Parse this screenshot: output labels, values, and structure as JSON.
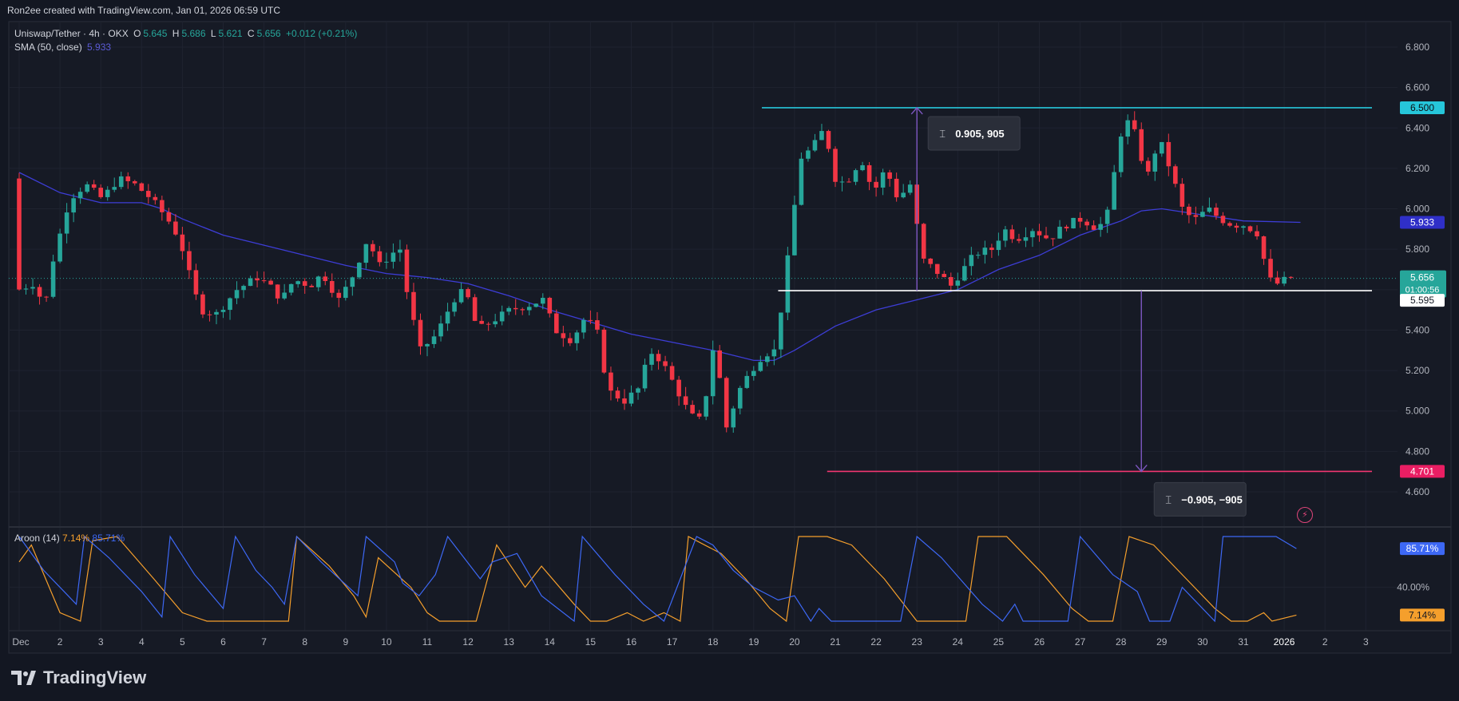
{
  "header": {
    "text": "Ron2ee created with TradingView.com, Jan 01, 2026 06:59 UTC"
  },
  "legend": {
    "symbol": "Uniswap/Tether · 4h · OKX",
    "o_label": "O",
    "o": "5.645",
    "h_label": "H",
    "h": "5.686",
    "l_label": "L",
    "l": "5.621",
    "c_label": "C",
    "c": "5.656",
    "change": "+0.012 (+0.21%)",
    "sma_label": "SMA (50, close)",
    "sma_value": "5.933"
  },
  "aroon_legend": {
    "label": "Aroon (14)",
    "down": "7.14%",
    "up": "85.71%"
  },
  "footer": {
    "brand": "TradingView"
  },
  "colors": {
    "up": "#26a69a",
    "down": "#f23645",
    "sma": "#3d3dd6",
    "aroon_up": "#3d68f5",
    "aroon_down": "#f59f2c",
    "resistance": "#26c6da",
    "support": "#ffffff",
    "target": "#f23671",
    "measure": "#7e57c2"
  },
  "chart_data": {
    "type": "candlestick",
    "title": "",
    "xlabel": "",
    "ylabel": "",
    "ylim": [
      4.5,
      6.9
    ],
    "y_ticks": [
      4.6,
      4.8,
      5.0,
      5.2,
      5.4,
      5.6,
      5.8,
      6.0,
      6.2,
      6.4,
      6.6,
      6.8
    ],
    "y_tick_labels": [
      "4.600",
      "4.800",
      "5.000",
      "5.200",
      "5.400",
      "5.600",
      "5.800",
      "6.000",
      "6.200",
      "6.400",
      "6.600",
      "6.800"
    ],
    "x_ticks": [
      "Dec",
      "2",
      "3",
      "4",
      "5",
      "6",
      "7",
      "8",
      "9",
      "10",
      "11",
      "12",
      "13",
      "14",
      "15",
      "16",
      "17",
      "18",
      "19",
      "20",
      "21",
      "22",
      "23",
      "24",
      "25",
      "26",
      "27",
      "28",
      "29",
      "30",
      "31",
      "2026",
      "2",
      "3"
    ],
    "price_anchors": [
      [
        1.0,
        6.15
      ],
      [
        1.15,
        5.6
      ],
      [
        1.5,
        5.63
      ],
      [
        1.8,
        5.52
      ],
      [
        2.0,
        5.75
      ],
      [
        2.4,
        6.05
      ],
      [
        2.8,
        6.12
      ],
      [
        3.2,
        6.05
      ],
      [
        3.6,
        6.15
      ],
      [
        4.0,
        6.12
      ],
      [
        4.4,
        6.05
      ],
      [
        4.8,
        5.95
      ],
      [
        5.1,
        5.85
      ],
      [
        5.3,
        5.7
      ],
      [
        5.6,
        5.5
      ],
      [
        6.0,
        5.48
      ],
      [
        6.5,
        5.6
      ],
      [
        7.0,
        5.66
      ],
      [
        7.3,
        5.62
      ],
      [
        7.6,
        5.55
      ],
      [
        7.9,
        5.65
      ],
      [
        8.3,
        5.62
      ],
      [
        8.6,
        5.68
      ],
      [
        9.0,
        5.55
      ],
      [
        9.3,
        5.65
      ],
      [
        9.7,
        5.85
      ],
      [
        10.0,
        5.72
      ],
      [
        10.3,
        5.78
      ],
      [
        10.5,
        5.8
      ],
      [
        10.7,
        5.55
      ],
      [
        11.0,
        5.3
      ],
      [
        11.4,
        5.38
      ],
      [
        11.8,
        5.55
      ],
      [
        12.1,
        5.6
      ],
      [
        12.4,
        5.4
      ],
      [
        12.8,
        5.45
      ],
      [
        13.2,
        5.5
      ],
      [
        13.6,
        5.52
      ],
      [
        14.0,
        5.55
      ],
      [
        14.3,
        5.4
      ],
      [
        14.7,
        5.35
      ],
      [
        15.0,
        5.45
      ],
      [
        15.3,
        5.42
      ],
      [
        15.6,
        5.1
      ],
      [
        16.0,
        5.05
      ],
      [
        16.4,
        5.12
      ],
      [
        16.6,
        5.3
      ],
      [
        16.9,
        5.25
      ],
      [
        17.3,
        5.1
      ],
      [
        17.6,
        4.98
      ],
      [
        17.9,
        4.95
      ],
      [
        18.2,
        5.35
      ],
      [
        18.5,
        4.92
      ],
      [
        18.8,
        5.1
      ],
      [
        19.1,
        5.2
      ],
      [
        19.4,
        5.28
      ],
      [
        19.7,
        5.3
      ],
      [
        19.9,
        5.6
      ],
      [
        20.1,
        5.9
      ],
      [
        20.3,
        6.25
      ],
      [
        20.6,
        6.3
      ],
      [
        20.9,
        6.4
      ],
      [
        21.2,
        6.12
      ],
      [
        21.5,
        6.15
      ],
      [
        21.8,
        6.25
      ],
      [
        22.1,
        6.08
      ],
      [
        22.4,
        6.2
      ],
      [
        22.7,
        6.05
      ],
      [
        23.0,
        6.12
      ],
      [
        23.3,
        5.75
      ],
      [
        23.6,
        5.7
      ],
      [
        24.0,
        5.62
      ],
      [
        24.3,
        5.7
      ],
      [
        24.6,
        5.78
      ],
      [
        25.0,
        5.8
      ],
      [
        25.3,
        5.9
      ],
      [
        25.6,
        5.85
      ],
      [
        26.0,
        5.9
      ],
      [
        26.4,
        5.85
      ],
      [
        26.8,
        5.92
      ],
      [
        27.2,
        5.95
      ],
      [
        27.6,
        5.9
      ],
      [
        27.9,
        6.0
      ],
      [
        28.1,
        6.35
      ],
      [
        28.4,
        6.45
      ],
      [
        28.6,
        6.3
      ],
      [
        28.8,
        6.15
      ],
      [
        29.1,
        6.35
      ],
      [
        29.4,
        6.18
      ],
      [
        29.7,
        5.98
      ],
      [
        30.0,
        5.95
      ],
      [
        30.3,
        6.0
      ],
      [
        30.6,
        5.95
      ],
      [
        30.9,
        5.92
      ],
      [
        31.2,
        5.92
      ],
      [
        31.5,
        5.88
      ],
      [
        31.8,
        5.65
      ],
      [
        32.0,
        5.63
      ],
      [
        32.3,
        5.66
      ]
    ],
    "sma_50": [
      [
        1.0,
        6.18
      ],
      [
        2.0,
        6.08
      ],
      [
        3.0,
        6.03
      ],
      [
        4.0,
        6.03
      ],
      [
        4.5,
        6.0
      ],
      [
        5.0,
        5.95
      ],
      [
        6.0,
        5.87
      ],
      [
        7.0,
        5.82
      ],
      [
        8.0,
        5.77
      ],
      [
        9.0,
        5.72
      ],
      [
        10.0,
        5.68
      ],
      [
        11.0,
        5.66
      ],
      [
        12.0,
        5.63
      ],
      [
        13.0,
        5.57
      ],
      [
        14.0,
        5.5
      ],
      [
        15.0,
        5.44
      ],
      [
        16.0,
        5.38
      ],
      [
        17.0,
        5.34
      ],
      [
        18.0,
        5.3
      ],
      [
        19.0,
        5.25
      ],
      [
        19.5,
        5.25
      ],
      [
        20.0,
        5.3
      ],
      [
        21.0,
        5.42
      ],
      [
        22.0,
        5.5
      ],
      [
        23.0,
        5.55
      ],
      [
        24.0,
        5.6
      ],
      [
        25.0,
        5.7
      ],
      [
        26.0,
        5.77
      ],
      [
        27.0,
        5.87
      ],
      [
        28.0,
        5.94
      ],
      [
        28.5,
        5.99
      ],
      [
        29.0,
        6.0
      ],
      [
        30.0,
        5.97
      ],
      [
        31.0,
        5.94
      ],
      [
        32.4,
        5.933
      ]
    ],
    "horizontal_levels": [
      {
        "label": "6.500",
        "value": 6.5,
        "x_from": 19.2
      },
      {
        "label": "5.595",
        "value": 5.595,
        "x_from": 19.6
      },
      {
        "label": "4.701",
        "value": 4.701,
        "x_from": 20.8
      }
    ],
    "current_price": {
      "label": "5.656",
      "countdown": "01:00:56",
      "value": 5.656
    },
    "sma_tag": {
      "label": "5.933",
      "value": 5.933
    },
    "measures": [
      {
        "label": "0.905, 905",
        "x": 23.0,
        "from": 5.595,
        "to": 6.5
      },
      {
        "label": "−0.905, −905",
        "x": 28.5,
        "from": 5.595,
        "to": 4.701
      }
    ],
    "aroon": {
      "period": 14,
      "ylim": [
        0,
        100
      ],
      "y_tick_labels": [
        "40.00%"
      ],
      "up_label": "85.71%",
      "down_label": "7.14%",
      "up": [
        [
          1.0,
          100
        ],
        [
          1.6,
          60
        ],
        [
          2.0,
          40
        ],
        [
          2.4,
          20
        ],
        [
          2.6,
          100
        ],
        [
          3.2,
          75
        ],
        [
          4.0,
          35
        ],
        [
          4.5,
          5
        ],
        [
          4.7,
          100
        ],
        [
          5.3,
          55
        ],
        [
          6.0,
          15
        ],
        [
          6.3,
          100
        ],
        [
          6.8,
          60
        ],
        [
          7.2,
          40
        ],
        [
          7.5,
          20
        ],
        [
          7.8,
          100
        ],
        [
          8.4,
          70
        ],
        [
          9.3,
          30
        ],
        [
          9.5,
          100
        ],
        [
          10.2,
          70
        ],
        [
          10.4,
          45
        ],
        [
          10.8,
          30
        ],
        [
          11.2,
          55
        ],
        [
          11.5,
          100
        ],
        [
          12.3,
          50
        ],
        [
          12.6,
          70
        ],
        [
          13.2,
          80
        ],
        [
          13.8,
          30
        ],
        [
          14.2,
          15
        ],
        [
          14.6,
          0
        ],
        [
          14.8,
          100
        ],
        [
          15.6,
          55
        ],
        [
          16.3,
          20
        ],
        [
          16.8,
          0
        ],
        [
          17.6,
          100
        ],
        [
          18.0,
          90
        ],
        [
          18.5,
          60
        ],
        [
          19.0,
          40
        ],
        [
          19.6,
          25
        ],
        [
          20.0,
          30
        ],
        [
          20.4,
          0
        ],
        [
          20.6,
          15
        ],
        [
          20.9,
          0
        ],
        [
          22.6,
          0
        ],
        [
          23.0,
          100
        ],
        [
          23.6,
          75
        ],
        [
          24.6,
          20
        ],
        [
          25.1,
          0
        ],
        [
          25.4,
          20
        ],
        [
          25.6,
          0
        ],
        [
          26.7,
          0
        ],
        [
          27.0,
          100
        ],
        [
          27.8,
          55
        ],
        [
          28.4,
          35
        ],
        [
          28.7,
          0
        ],
        [
          29.2,
          0
        ],
        [
          29.5,
          40
        ],
        [
          30.3,
          0
        ],
        [
          30.5,
          100
        ],
        [
          31.2,
          100
        ],
        [
          31.8,
          100
        ],
        [
          32.3,
          85.71
        ]
      ],
      "down": [
        [
          1.0,
          70
        ],
        [
          1.3,
          90
        ],
        [
          2.0,
          10
        ],
        [
          2.5,
          0
        ],
        [
          2.8,
          95
        ],
        [
          3.4,
          100
        ],
        [
          4.3,
          50
        ],
        [
          5.0,
          10
        ],
        [
          5.6,
          0
        ],
        [
          7.6,
          0
        ],
        [
          7.8,
          100
        ],
        [
          8.6,
          65
        ],
        [
          9.2,
          30
        ],
        [
          9.5,
          5
        ],
        [
          9.8,
          75
        ],
        [
          10.6,
          40
        ],
        [
          11.0,
          10
        ],
        [
          11.3,
          0
        ],
        [
          12.2,
          0
        ],
        [
          12.7,
          90
        ],
        [
          13.4,
          40
        ],
        [
          13.8,
          65
        ],
        [
          14.6,
          20
        ],
        [
          15.0,
          0
        ],
        [
          15.4,
          0
        ],
        [
          15.9,
          10
        ],
        [
          16.3,
          0
        ],
        [
          16.8,
          10
        ],
        [
          17.2,
          0
        ],
        [
          17.4,
          100
        ],
        [
          18.2,
          80
        ],
        [
          18.8,
          50
        ],
        [
          19.4,
          15
        ],
        [
          19.8,
          0
        ],
        [
          20.1,
          100
        ],
        [
          20.8,
          100
        ],
        [
          21.4,
          90
        ],
        [
          22.2,
          50
        ],
        [
          23.0,
          0
        ],
        [
          24.2,
          0
        ],
        [
          24.5,
          100
        ],
        [
          25.2,
          100
        ],
        [
          26.1,
          55
        ],
        [
          26.8,
          15
        ],
        [
          27.2,
          0
        ],
        [
          27.8,
          0
        ],
        [
          28.2,
          100
        ],
        [
          28.8,
          90
        ],
        [
          29.6,
          50
        ],
        [
          30.3,
          15
        ],
        [
          30.7,
          0
        ],
        [
          31.1,
          0
        ],
        [
          31.5,
          10
        ],
        [
          31.7,
          0
        ],
        [
          32.3,
          7.14
        ]
      ]
    }
  }
}
